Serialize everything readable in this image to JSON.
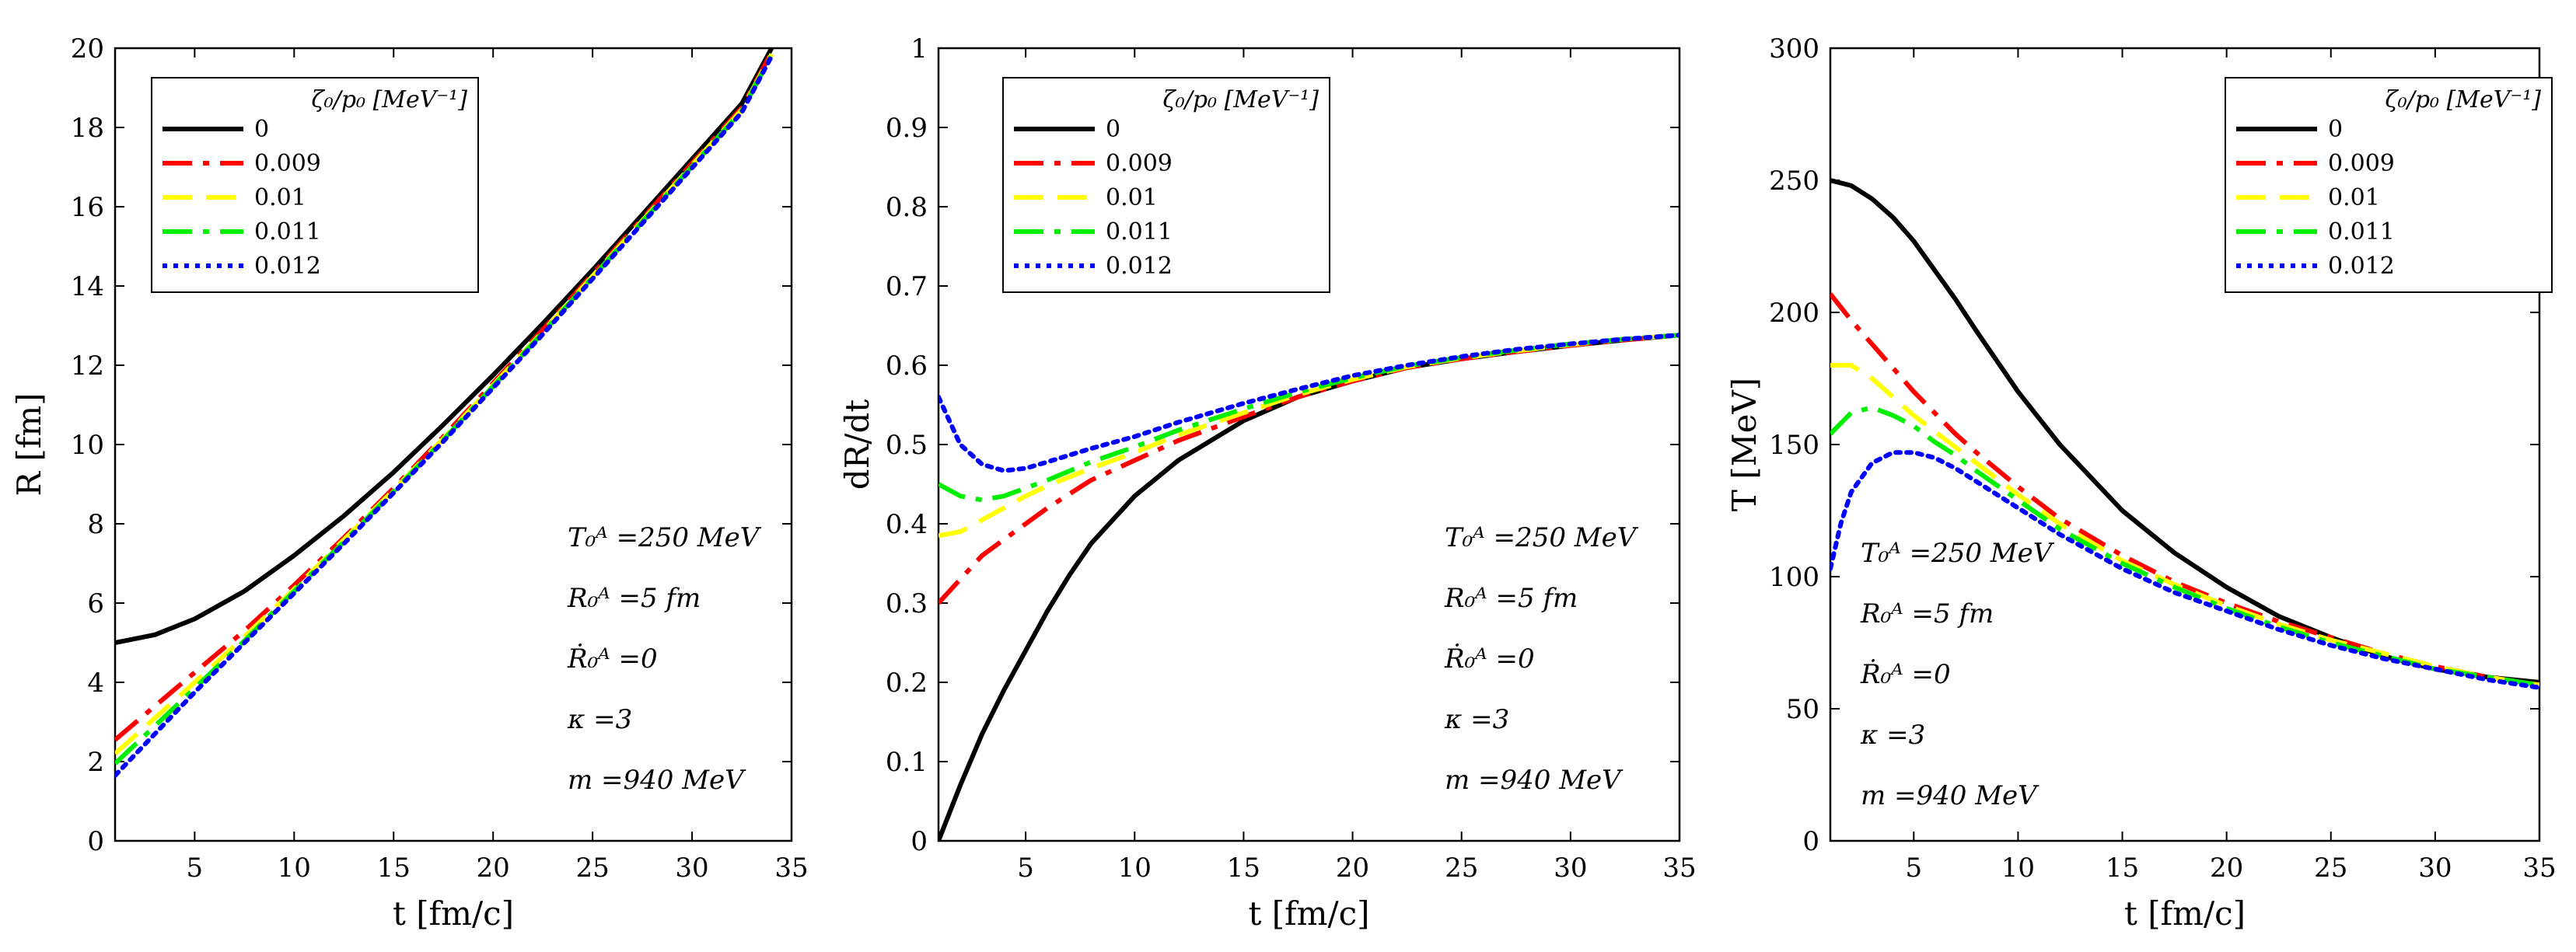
{
  "chart_data": [
    {
      "type": "line",
      "title": "",
      "xlabel": "t [fm/c]",
      "ylabel": "R [fm]",
      "xlim": [
        1,
        35
      ],
      "ylim": [
        0,
        20
      ],
      "xticks": [
        5,
        10,
        15,
        20,
        25,
        30,
        35
      ],
      "yticks": [
        0,
        2,
        4,
        6,
        8,
        10,
        12,
        14,
        16,
        18,
        20
      ],
      "legend_title": "ζ₀/p₀ [MeV⁻¹]",
      "legend_position": "top-left",
      "annotations": [
        "T₀ᴬ =250 MeV",
        "R₀ᴬ =5 fm",
        "Ṙ₀ᴬ =0",
        "κ =3",
        "m =940 MeV"
      ],
      "series": [
        {
          "name": "0",
          "color": "#000000",
          "style": "solid",
          "x": [
            1,
            3,
            5,
            7.5,
            10,
            12.5,
            15,
            17.5,
            20,
            22.5,
            25,
            27.5,
            30,
            32.5,
            34
          ],
          "y": [
            5.0,
            5.2,
            5.6,
            6.3,
            7.2,
            8.2,
            9.3,
            10.5,
            11.75,
            13.05,
            14.4,
            15.8,
            17.2,
            18.6,
            20.0
          ]
        },
        {
          "name": "0.009",
          "color": "#ff0000",
          "style": "dashdot",
          "x": [
            1,
            3,
            5,
            7.5,
            10,
            12.5,
            15,
            17.5,
            20,
            22.5,
            25,
            27.5,
            30,
            32.5,
            34
          ],
          "y": [
            2.55,
            3.4,
            4.25,
            5.3,
            6.45,
            7.65,
            8.9,
            10.2,
            11.55,
            12.9,
            14.3,
            15.7,
            17.1,
            18.5,
            19.9
          ]
        },
        {
          "name": "0.01",
          "color": "#ffff00",
          "style": "dashed",
          "x": [
            1,
            3,
            5,
            7.5,
            10,
            12.5,
            15,
            17.5,
            20,
            22.5,
            25,
            27.5,
            30,
            32.5,
            34
          ],
          "y": [
            2.2,
            3.1,
            4.0,
            5.15,
            6.35,
            7.6,
            8.85,
            10.15,
            11.5,
            12.85,
            14.25,
            15.65,
            17.05,
            18.45,
            19.85
          ]
        },
        {
          "name": "0.011",
          "color": "#00ee00",
          "style": "dashdot",
          "x": [
            1,
            3,
            5,
            7.5,
            10,
            12.5,
            15,
            17.5,
            20,
            22.5,
            25,
            27.5,
            30,
            32.5,
            34
          ],
          "y": [
            1.95,
            2.9,
            3.85,
            5.05,
            6.3,
            7.55,
            8.82,
            10.12,
            11.47,
            12.82,
            14.22,
            15.62,
            17.02,
            18.42,
            19.82
          ]
        },
        {
          "name": "0.012",
          "color": "#0000ff",
          "style": "dotted",
          "x": [
            1,
            3,
            5,
            7.5,
            10,
            12.5,
            15,
            17.5,
            20,
            22.5,
            25,
            27.5,
            30,
            32.5,
            34
          ],
          "y": [
            1.65,
            2.7,
            3.75,
            5.0,
            6.25,
            7.5,
            8.78,
            10.08,
            11.43,
            12.78,
            14.18,
            15.58,
            16.98,
            18.38,
            19.8
          ]
        }
      ]
    },
    {
      "type": "line",
      "title": "",
      "xlabel": "t [fm/c]",
      "ylabel": "dR/dt",
      "xlim": [
        1,
        35
      ],
      "ylim": [
        0,
        1
      ],
      "xticks": [
        5,
        10,
        15,
        20,
        25,
        30,
        35
      ],
      "yticks": [
        0,
        0.1,
        0.2,
        0.3,
        0.4,
        0.5,
        0.6,
        0.7,
        0.8,
        0.9,
        1
      ],
      "legend_title": "ζ₀/p₀ [MeV⁻¹]",
      "legend_position": "top-left",
      "annotations": [
        "T₀ᴬ =250 MeV",
        "R₀ᴬ =5 fm",
        "Ṙ₀ᴬ =0",
        "κ =3",
        "m =940 MeV"
      ],
      "series": [
        {
          "name": "0",
          "color": "#000000",
          "style": "solid",
          "x": [
            1,
            2,
            3,
            4,
            5,
            6,
            7,
            8,
            10,
            12,
            15,
            17.5,
            20,
            22.5,
            25,
            27.5,
            30,
            32.5,
            35
          ],
          "y": [
            0.0,
            0.07,
            0.135,
            0.19,
            0.24,
            0.29,
            0.335,
            0.375,
            0.435,
            0.48,
            0.53,
            0.56,
            0.58,
            0.597,
            0.608,
            0.617,
            0.625,
            0.632,
            0.638
          ]
        },
        {
          "name": "0.009",
          "color": "#ff0000",
          "style": "dashdot",
          "x": [
            1,
            2,
            3,
            4,
            5,
            6,
            8,
            10,
            12,
            15,
            17.5,
            20,
            22.5,
            25,
            27.5,
            30,
            32.5,
            35
          ],
          "y": [
            0.3,
            0.33,
            0.36,
            0.38,
            0.4,
            0.42,
            0.455,
            0.48,
            0.505,
            0.535,
            0.56,
            0.58,
            0.597,
            0.608,
            0.617,
            0.625,
            0.632,
            0.638
          ]
        },
        {
          "name": "0.01",
          "color": "#ffff00",
          "style": "dashed",
          "x": [
            1,
            2,
            3,
            4,
            5,
            6,
            8,
            10,
            12,
            15,
            17.5,
            20,
            22.5,
            25,
            27.5,
            30,
            32.5,
            35
          ],
          "y": [
            0.385,
            0.39,
            0.405,
            0.42,
            0.435,
            0.448,
            0.47,
            0.49,
            0.512,
            0.54,
            0.563,
            0.582,
            0.598,
            0.609,
            0.618,
            0.626,
            0.633,
            0.638
          ]
        },
        {
          "name": "0.011",
          "color": "#00ee00",
          "style": "dashdot",
          "x": [
            1,
            2,
            3,
            4,
            5,
            6,
            8,
            10,
            12,
            15,
            17.5,
            20,
            22.5,
            25,
            27.5,
            30,
            32.5,
            35
          ],
          "y": [
            0.45,
            0.435,
            0.43,
            0.435,
            0.445,
            0.455,
            0.478,
            0.497,
            0.518,
            0.545,
            0.566,
            0.584,
            0.599,
            0.61,
            0.619,
            0.627,
            0.633,
            0.638
          ]
        },
        {
          "name": "0.012",
          "color": "#0000ff",
          "style": "dotted",
          "x": [
            1,
            1.5,
            2,
            3,
            4,
            5,
            6,
            8,
            10,
            12,
            15,
            17.5,
            20,
            22.5,
            25,
            27.5,
            30,
            32.5,
            35
          ],
          "y": [
            0.56,
            0.53,
            0.5,
            0.475,
            0.467,
            0.47,
            0.478,
            0.495,
            0.51,
            0.528,
            0.552,
            0.57,
            0.587,
            0.6,
            0.611,
            0.62,
            0.627,
            0.633,
            0.638
          ]
        }
      ]
    },
    {
      "type": "line",
      "title": "",
      "xlabel": "t [fm/c]",
      "ylabel": "T [MeV]",
      "xlim": [
        1,
        35
      ],
      "ylim": [
        0,
        300
      ],
      "xticks": [
        5,
        10,
        15,
        20,
        25,
        30,
        35
      ],
      "yticks": [
        0,
        50,
        100,
        150,
        200,
        250,
        300
      ],
      "legend_title": "ζ₀/p₀ [MeV⁻¹]",
      "legend_position": "top-right",
      "annotations": [
        "T₀ᴬ =250 MeV",
        "R₀ᴬ =5 fm",
        "Ṙ₀ᴬ =0",
        "κ =3",
        "m =940 MeV"
      ],
      "series": [
        {
          "name": "0",
          "color": "#000000",
          "style": "solid",
          "x": [
            1,
            2,
            3,
            4,
            5,
            6,
            7,
            8,
            10,
            12,
            15,
            17.5,
            20,
            22.5,
            25,
            27.5,
            30,
            32.5,
            35
          ],
          "y": [
            250,
            248,
            243,
            236,
            227,
            216,
            205,
            193,
            170,
            150,
            125,
            109,
            96,
            85,
            77,
            70,
            65,
            62,
            60
          ]
        },
        {
          "name": "0.009",
          "color": "#ff0000",
          "style": "dashdot",
          "x": [
            1,
            2,
            3,
            4,
            5,
            6,
            7,
            8,
            10,
            12,
            15,
            17.5,
            20,
            22.5,
            25,
            27.5,
            30,
            32.5,
            35
          ],
          "y": [
            207,
            197,
            188,
            179,
            170,
            162,
            154,
            147,
            134,
            122,
            108,
            98,
            90,
            83,
            77,
            71,
            66,
            62,
            59
          ]
        },
        {
          "name": "0.01",
          "color": "#ffff00",
          "style": "dashed",
          "x": [
            1,
            2,
            3,
            4,
            5,
            6,
            7,
            8,
            10,
            12,
            15,
            17.5,
            20,
            22.5,
            25,
            27.5,
            30,
            32.5,
            35
          ],
          "y": [
            180,
            180,
            175,
            168,
            161,
            155,
            149,
            143,
            131,
            120,
            106,
            97,
            89,
            82,
            76,
            71,
            66,
            62,
            59
          ]
        },
        {
          "name": "0.011",
          "color": "#00ee00",
          "style": "dashdot",
          "x": [
            1,
            2,
            3,
            4,
            5,
            6,
            7,
            8,
            10,
            12,
            15,
            17.5,
            20,
            22.5,
            25,
            27.5,
            30,
            32.5,
            35
          ],
          "y": [
            154,
            162,
            164,
            161,
            157,
            151,
            146,
            140,
            129,
            118,
            105,
            96,
            88,
            81,
            75,
            70,
            65,
            62,
            59
          ]
        },
        {
          "name": "0.012",
          "color": "#0000ff",
          "style": "dotted",
          "x": [
            1,
            1.5,
            2,
            3,
            4,
            5,
            6,
            7,
            8,
            10,
            12,
            15,
            17.5,
            20,
            22.5,
            25,
            27.5,
            30,
            32.5,
            35
          ],
          "y": [
            103,
            120,
            132,
            143,
            147,
            147,
            145,
            141,
            136,
            126,
            116,
            103,
            94,
            87,
            80,
            74,
            69,
            65,
            61,
            58
          ]
        }
      ]
    }
  ]
}
